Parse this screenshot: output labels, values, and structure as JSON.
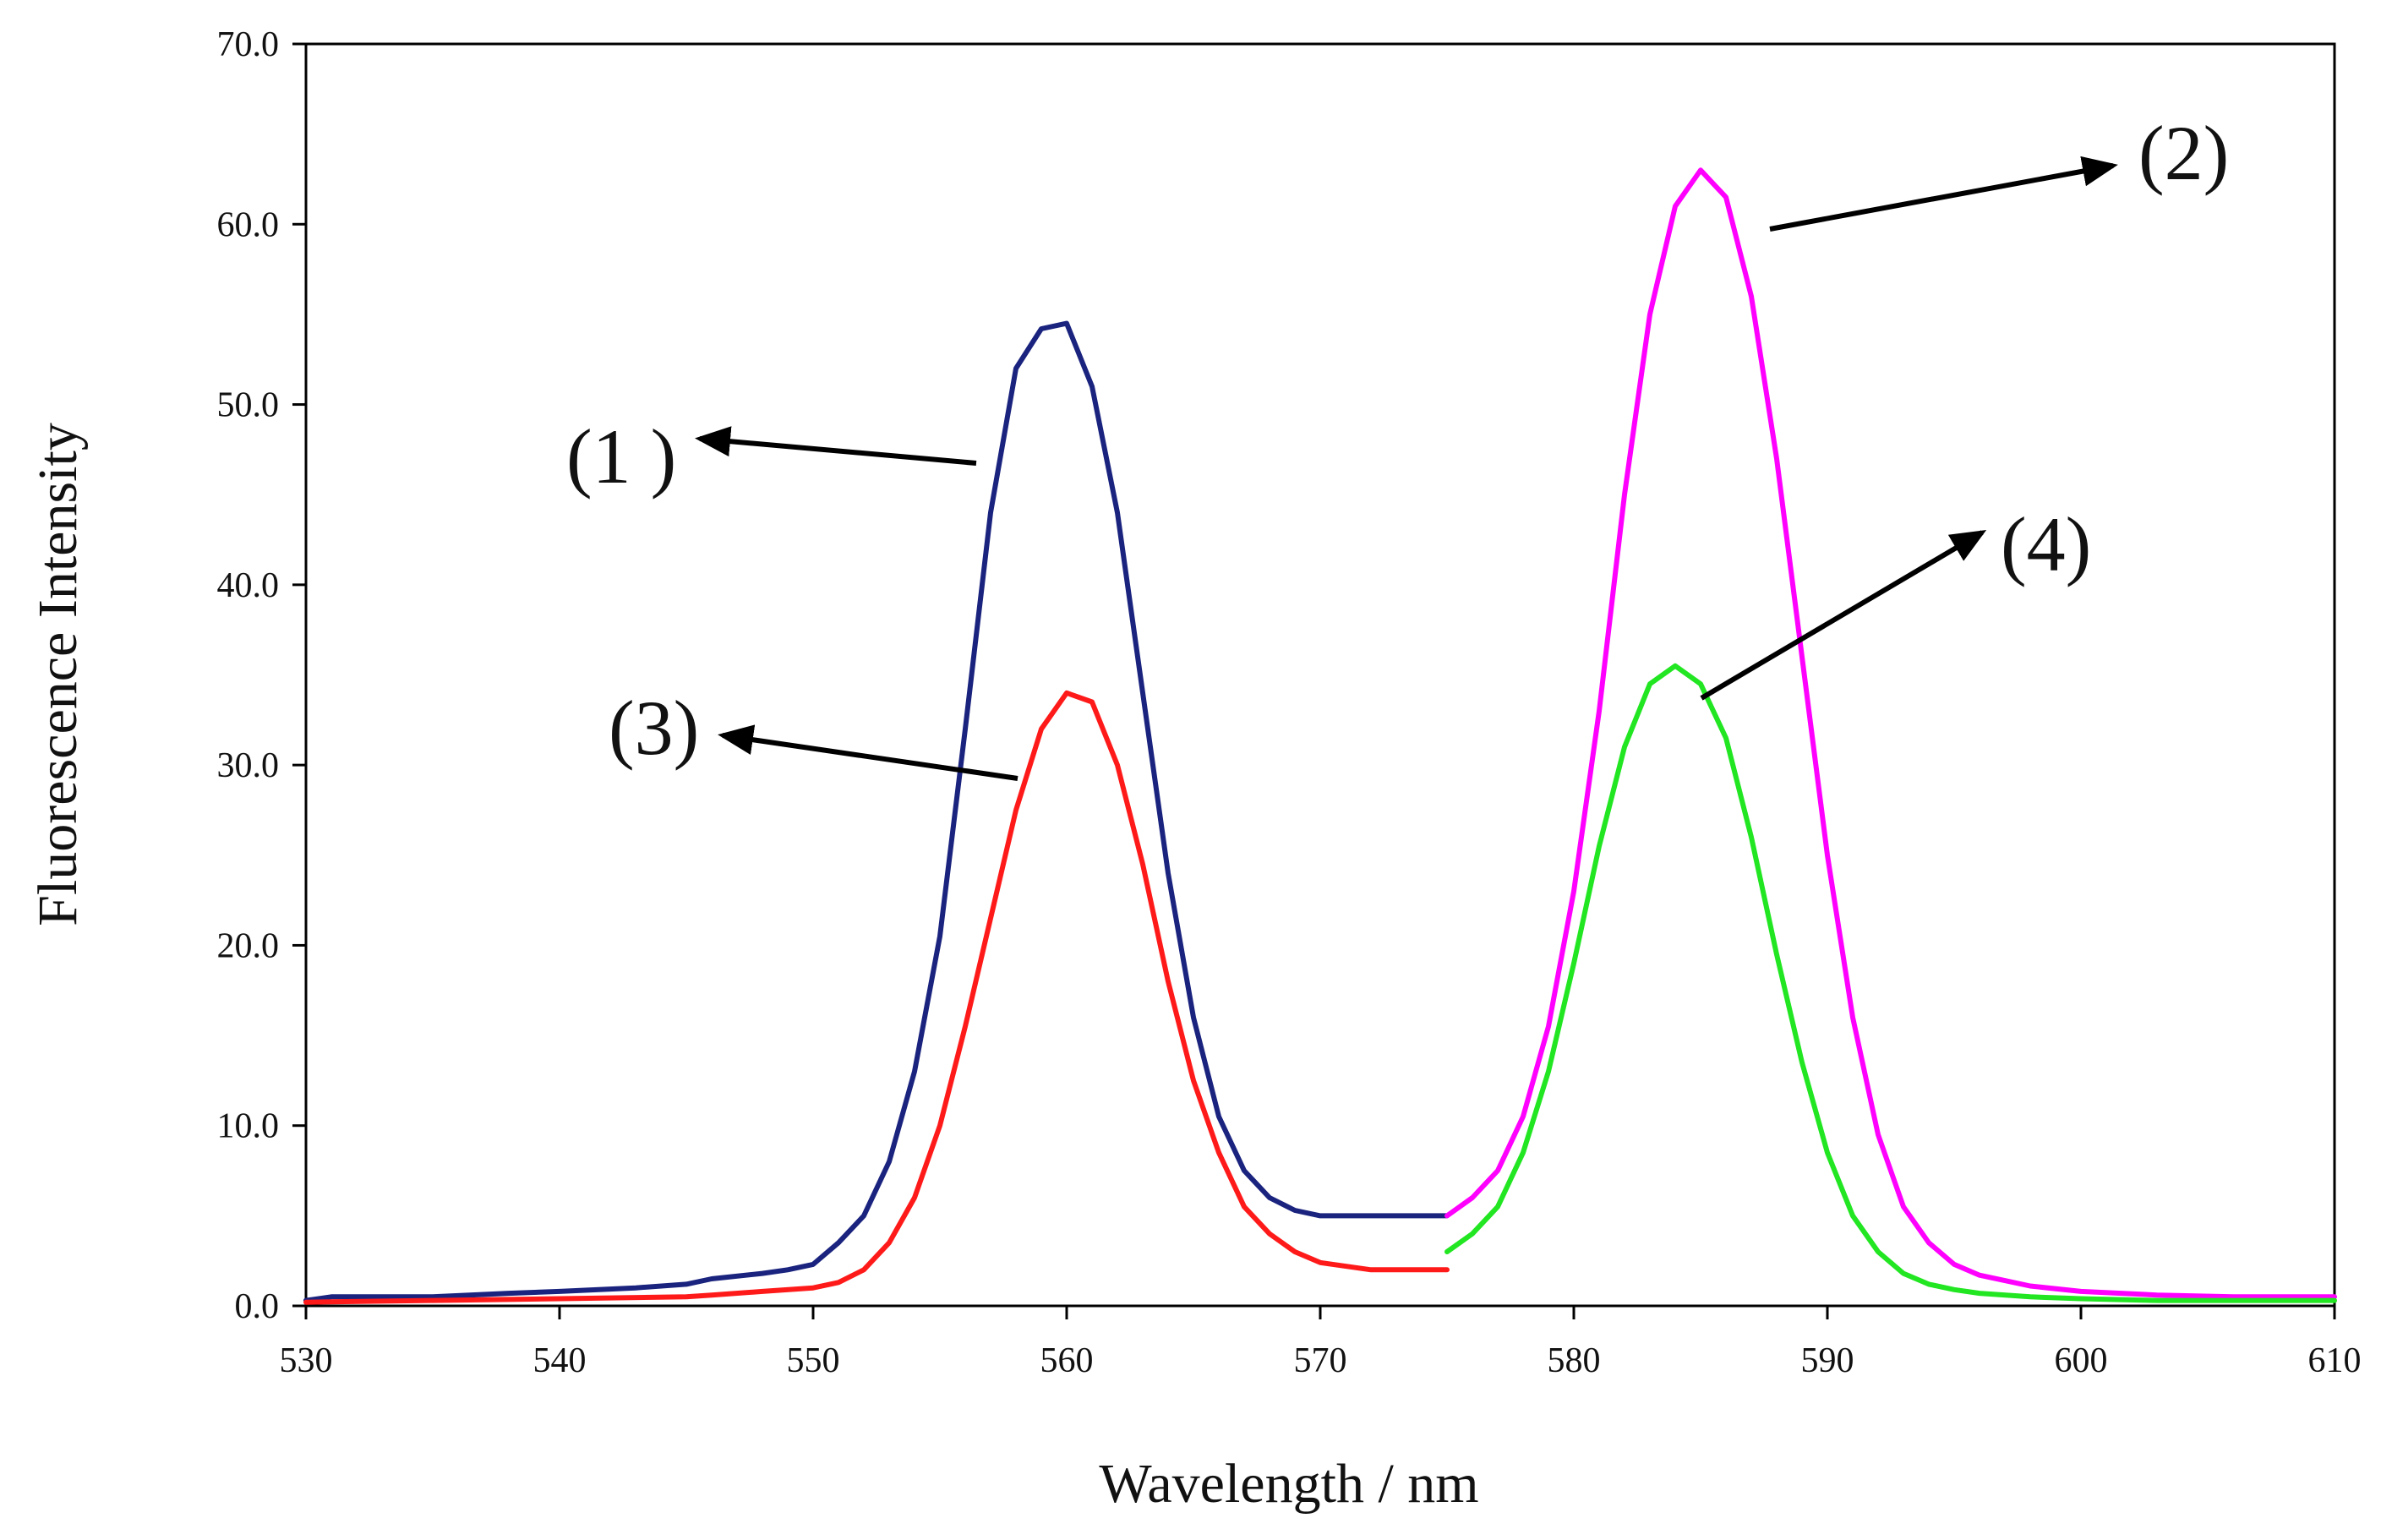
{
  "chart_data": {
    "type": "line",
    "title": "",
    "xlabel": "Wavelength / nm",
    "ylabel": "Fluorescence Intensity",
    "xlim": [
      530,
      610
    ],
    "ylim": [
      0,
      70
    ],
    "xticks": [
      "530",
      "540",
      "550",
      "560",
      "570",
      "580",
      "590",
      "600",
      "610"
    ],
    "yticks": [
      "0.0",
      "10.0",
      "20.0",
      "30.0",
      "40.0",
      "50.0",
      "60.0",
      "70.0"
    ],
    "grid": false,
    "legend": "none",
    "series": [
      {
        "name": "(1 )",
        "color": "#1a237e",
        "x": [
          530,
          531,
          535,
          538,
          540,
          543,
          545,
          546,
          548,
          549,
          550,
          551,
          552,
          553,
          554,
          555,
          556,
          557,
          558,
          559,
          560,
          561,
          562,
          563,
          564,
          565,
          566,
          567,
          568,
          569,
          570,
          572,
          575
        ],
        "y": [
          0.3,
          0.5,
          0.5,
          0.7,
          0.8,
          1.0,
          1.2,
          1.5,
          1.8,
          2.0,
          2.3,
          3.5,
          5.0,
          8.0,
          13.0,
          20.5,
          32.0,
          44.0,
          52.0,
          54.2,
          54.5,
          51.0,
          44.0,
          34.0,
          24.0,
          16.0,
          10.5,
          7.5,
          6.0,
          5.3,
          5.0,
          5.0,
          5.0
        ]
      },
      {
        "name": "(2)",
        "color": "#ff00ff",
        "x": [
          575,
          576,
          577,
          578,
          579,
          580,
          581,
          582,
          583,
          584,
          585,
          586,
          587,
          588,
          589,
          590,
          591,
          592,
          593,
          594,
          595,
          596,
          597,
          598,
          600,
          603,
          606,
          610
        ],
        "y": [
          5.0,
          6.0,
          7.5,
          10.5,
          15.5,
          23.0,
          33.0,
          45.0,
          55.0,
          61.0,
          63.0,
          61.5,
          56.0,
          47.0,
          36.0,
          25.0,
          16.0,
          9.5,
          5.5,
          3.5,
          2.3,
          1.7,
          1.4,
          1.1,
          0.8,
          0.6,
          0.5,
          0.5
        ]
      },
      {
        "name": "(3)",
        "color": "#ff1a1a",
        "x": [
          530,
          535,
          540,
          545,
          546,
          548,
          550,
          551,
          552,
          553,
          554,
          555,
          556,
          557,
          558,
          559,
          560,
          561,
          562,
          563,
          564,
          565,
          566,
          567,
          568,
          569,
          570,
          572,
          575
        ],
        "y": [
          0.2,
          0.3,
          0.4,
          0.5,
          0.6,
          0.8,
          1.0,
          1.3,
          2.0,
          3.5,
          6.0,
          10.0,
          15.5,
          21.5,
          27.5,
          32.0,
          34.0,
          33.5,
          30.0,
          24.5,
          18.0,
          12.5,
          8.5,
          5.5,
          4.0,
          3.0,
          2.4,
          2.0,
          2.0
        ]
      },
      {
        "name": "(4)",
        "color": "#22e622",
        "x": [
          575,
          576,
          577,
          578,
          579,
          580,
          581,
          582,
          583,
          584,
          585,
          586,
          587,
          588,
          589,
          590,
          591,
          592,
          593,
          594,
          595,
          596,
          598,
          600,
          603,
          606,
          610
        ],
        "y": [
          3.0,
          4.0,
          5.5,
          8.5,
          13.0,
          19.0,
          25.5,
          31.0,
          34.5,
          35.5,
          34.5,
          31.5,
          26.0,
          19.5,
          13.5,
          8.5,
          5.0,
          3.0,
          1.8,
          1.2,
          0.9,
          0.7,
          0.5,
          0.4,
          0.3,
          0.3,
          0.3
        ]
      }
    ],
    "annotations": [
      {
        "text": "(1 )",
        "points_to_series": "(1 )"
      },
      {
        "text": "(2)",
        "points_to_series": "(2)"
      },
      {
        "text": "(3)",
        "points_to_series": "(3)"
      },
      {
        "text": "(4)",
        "points_to_series": "(4)"
      }
    ]
  }
}
